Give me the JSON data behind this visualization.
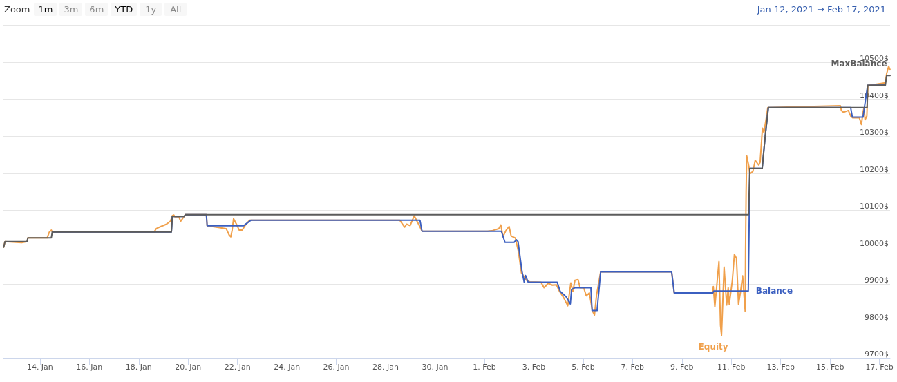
{
  "chart_data": {
    "type": "line",
    "annotations": [
      "Zoom",
      "1m",
      "3m",
      "6m",
      "YTD",
      "1y",
      "All",
      "Jan 12, 2021 → Feb 17, 2021"
    ],
    "xlim": [
      "2021-01-12T12:30",
      "2021-02-17T10:20"
    ],
    "xticks": [
      {
        "value": "2021-01-14",
        "label": "14. Jan"
      },
      {
        "value": "2021-01-16",
        "label": "16. Jan"
      },
      {
        "value": "2021-01-18",
        "label": "18. Jan"
      },
      {
        "value": "2021-01-20",
        "label": "20. Jan"
      },
      {
        "value": "2021-01-22",
        "label": "22. Jan"
      },
      {
        "value": "2021-01-24",
        "label": "24. Jan"
      },
      {
        "value": "2021-01-26",
        "label": "26. Jan"
      },
      {
        "value": "2021-01-28",
        "label": "28. Jan"
      },
      {
        "value": "2021-01-30",
        "label": "30. Jan"
      },
      {
        "value": "2021-02-01",
        "label": "1. Feb"
      },
      {
        "value": "2021-02-03",
        "label": "3. Feb"
      },
      {
        "value": "2021-02-05",
        "label": "5. Feb"
      },
      {
        "value": "2021-02-07",
        "label": "7. Feb"
      },
      {
        "value": "2021-02-09",
        "label": "9. Feb"
      },
      {
        "value": "2021-02-11",
        "label": "11. Feb"
      },
      {
        "value": "2021-02-13",
        "label": "13. Feb"
      },
      {
        "value": "2021-02-15",
        "label": "15. Feb"
      },
      {
        "value": "2021-02-17",
        "label": "17. Feb"
      }
    ],
    "ylim": [
      9700,
      10600
    ],
    "yticks": [
      {
        "value": 9700,
        "label": "9700$"
      },
      {
        "value": 9800,
        "label": "9800$"
      },
      {
        "value": 9900,
        "label": "9900$"
      },
      {
        "value": 10000,
        "label": "10000$"
      },
      {
        "value": 10100,
        "label": "10100$"
      },
      {
        "value": 10200,
        "label": "10200$"
      },
      {
        "value": 10300,
        "label": "10300$"
      },
      {
        "value": 10400,
        "label": "10400$"
      },
      {
        "value": 10500,
        "label": "10500$"
      }
    ],
    "grid": "y",
    "legend": false,
    "marker": "none",
    "line_style": "solid",
    "series": [
      {
        "name": "Equity",
        "color": "#f0a04b",
        "x": [
          "2021-01-12T12:45",
          "2021-01-12T14:00",
          "2021-01-13T06:15",
          "2021-01-13T11:30",
          "2021-01-13T12:15",
          "2021-01-14T07:00",
          "2021-01-14T09:00",
          "2021-01-14T11:00",
          "2021-01-14T12:00",
          "2021-01-18T15:00",
          "2021-01-18T17:00",
          "2021-01-18T21:40",
          "2021-01-19T03:00",
          "2021-01-19T06:45",
          "2021-01-19T08:40",
          "2021-01-19T10:00",
          "2021-01-19T11:15",
          "2021-01-19T15:00",
          "2021-01-19T16:50",
          "2021-01-19T21:20",
          "2021-01-20T17:45",
          "2021-01-20T18:30",
          "2021-01-21T13:00",
          "2021-01-21T15:50",
          "2021-01-21T17:30",
          "2021-01-21T18:45",
          "2021-01-21T20:10",
          "2021-01-21T23:00",
          "2021-01-22T01:40",
          "2021-01-22T04:30",
          "2021-01-22T07:20",
          "2021-01-22T11:45",
          "2021-01-28T13:40",
          "2021-01-28T18:30",
          "2021-01-28T20:24",
          "2021-01-28T23:45",
          "2021-01-29T03:50",
          "2021-01-29T06:30",
          "2021-01-29T09:20",
          "2021-01-29T11:20",
          "2021-02-01T03:00",
          "2021-02-01T08:00",
          "2021-02-01T14:00",
          "2021-02-01T16:00",
          "2021-02-01T18:00",
          "2021-02-01T21:00",
          "2021-02-02T00:00",
          "2021-02-02T02:00",
          "2021-02-02T06:00",
          "2021-02-02T09:00",
          "2021-02-02T12:00",
          "2021-02-02T15:00",
          "2021-02-02T17:00",
          "2021-02-02T20:00",
          "2021-02-03T07:00",
          "2021-02-03T10:00",
          "2021-02-03T14:00",
          "2021-02-03T18:00",
          "2021-02-03T22:00",
          "2021-02-04T01:00",
          "2021-02-04T05:00",
          "2021-02-04T09:00",
          "2021-02-04T12:00",
          "2021-02-04T14:00",
          "2021-02-04T16:00",
          "2021-02-04T19:00",
          "2021-02-04T21:00",
          "2021-02-05T00:30",
          "2021-02-05T03:00",
          "2021-02-05T06:00",
          "2021-02-05T09:00",
          "2021-02-05T11:00",
          "2021-02-05T13:00",
          "2021-02-05T17:00",
          "2021-02-08T14:00",
          "2021-02-08T16:30",
          "2021-02-10T06:00",
          "2021-02-10T06:30",
          "2021-02-10T08:00",
          "2021-02-10T12:00",
          "2021-02-10T13:30",
          "2021-02-10T14:30",
          "2021-02-10T17:00",
          "2021-02-10T19:30",
          "2021-02-10T21:00",
          "2021-02-10T22:00",
          "2021-02-11T01:00",
          "2021-02-11T03:00",
          "2021-02-11T05:00",
          "2021-02-11T07:00",
          "2021-02-11T09:00",
          "2021-02-11T11:00",
          "2021-02-11T13:30",
          "2021-02-11T13:50",
          "2021-02-11T14:24",
          "2021-02-11T15:00",
          "2021-02-11T17:00",
          "2021-02-11T18:00",
          "2021-02-11T21:00",
          "2021-02-11T23:15",
          "2021-02-12T02:40",
          "2021-02-12T04:00",
          "2021-02-12T06:15",
          "2021-02-12T07:40",
          "2021-02-12T10:00",
          "2021-02-12T11:30",
          "2021-02-15T10:00",
          "2021-02-15T11:00",
          "2021-02-15T13:00",
          "2021-02-15T17:45",
          "2021-02-15T20:00",
          "2021-02-15T22:00",
          "2021-02-16T04:30",
          "2021-02-16T06:30",
          "2021-02-16T08:00",
          "2021-02-16T09:00",
          "2021-02-16T10:00",
          "2021-02-16T11:45",
          "2021-02-16T12:45",
          "2021-02-17T05:45",
          "2021-02-17T07:00",
          "2021-02-17T09:00",
          "2021-02-17T10:20"
        ],
        "values": [
          10000,
          10015,
          10012,
          10015,
          10025,
          10025,
          10040,
          10046,
          10041,
          10041,
          10050,
          10056,
          10062,
          10070,
          10085,
          10087,
          10082,
          10082,
          10070,
          10088,
          10088,
          10058,
          10050,
          10033,
          10028,
          10045,
          10077,
          10062,
          10046,
          10046,
          10058,
          10073,
          10073,
          10054,
          10062,
          10058,
          10085,
          10070,
          10055,
          10043,
          10043,
          10045,
          10050,
          10060,
          10028,
          10045,
          10056,
          10030,
          10025,
          9989,
          9930,
          9918,
          9910,
          9906,
          9905,
          9890,
          9902,
          9897,
          9898,
          9880,
          9863,
          9841,
          9903,
          9880,
          9910,
          9912,
          9890,
          9890,
          9868,
          9876,
          9827,
          9816,
          9870,
          9933,
          9933,
          9876,
          9876,
          9893,
          9838,
          9961,
          9788,
          9761,
          9946,
          9843,
          9890,
          9845,
          9910,
          9980,
          9970,
          9845,
          9880,
          9922,
          9826,
          9990,
          10150,
          10247,
          10220,
          10198,
          10205,
          10235,
          10222,
          10230,
          10322,
          10310,
          10350,
          10378,
          10383,
          10370,
          10365,
          10370,
          10355,
          10350,
          10350,
          10332,
          10365,
          10378,
          10345,
          10355,
          10438,
          10445,
          10470,
          10490,
          10480
        ]
      },
      {
        "name": "Balance",
        "color": "#3b5fc0",
        "x": [
          "2021-01-14T12:00",
          "2021-01-19T07:45",
          "2021-01-19T08:40",
          "2021-01-19T20:24",
          "2021-01-19T21:20",
          "2021-01-20T17:45",
          "2021-01-20T18:30",
          "2021-01-22T06:00",
          "2021-01-22T13:10",
          "2021-01-29T09:20",
          "2021-01-29T11:20",
          "2021-02-01T16:30",
          "2021-02-01T20:00",
          "2021-02-02T05:00",
          "2021-02-02T07:00",
          "2021-02-02T08:40",
          "2021-02-02T12:30",
          "2021-02-02T14:40",
          "2021-02-02T16:00",
          "2021-02-02T18:30",
          "2021-02-03T22:45",
          "2021-02-04T01:40",
          "2021-02-04T07:30",
          "2021-02-04T11:30",
          "2021-02-04T12:45",
          "2021-02-04T16:00",
          "2021-02-05T07:30",
          "2021-02-05T08:40",
          "2021-02-05T13:30",
          "2021-02-05T17:00",
          "2021-02-08T14:00",
          "2021-02-08T16:30",
          "2021-02-10T06:00",
          "2021-02-10T07:00",
          "2021-02-11T16:30",
          "2021-02-11T18:00",
          "2021-02-12T06:00",
          "2021-02-12T08:40",
          "2021-02-12T12:00",
          "2021-02-15T20:00",
          "2021-02-15T21:40",
          "2021-02-16T08:00",
          "2021-02-16T12:30",
          "2021-02-17T05:45"
        ],
        "values": [
          10041,
          10041,
          10083,
          10083,
          10088,
          10088,
          10058,
          10058,
          10073,
          10073,
          10043,
          10043,
          10013,
          10013,
          10020,
          10015,
          9935,
          9905,
          9923,
          9905,
          9905,
          9880,
          9865,
          9846,
          9885,
          9890,
          9890,
          9828,
          9828,
          9933,
          9933,
          9876,
          9876,
          9881,
          9881,
          10213,
          10213,
          10293,
          10378,
          10378,
          10352,
          10352,
          10438,
          10439
        ]
      },
      {
        "name": "MaxBalance",
        "color": "#5c5c5c",
        "x": [
          "2021-01-12T12:45",
          "2021-01-12T14:00",
          "2021-01-13T11:30",
          "2021-01-13T12:15",
          "2021-01-14T11:00",
          "2021-01-14T12:00",
          "2021-01-19T07:45",
          "2021-01-19T08:40",
          "2021-01-19T20:24",
          "2021-01-19T21:20",
          "2021-02-11T16:45",
          "2021-02-11T18:00",
          "2021-02-12T06:00",
          "2021-02-12T08:40",
          "2021-02-12T12:00",
          "2021-02-16T12:00",
          "2021-02-16T12:30",
          "2021-02-17T05:45",
          "2021-02-17T07:00",
          "2021-02-17T10:20"
        ],
        "values": [
          10000,
          10015,
          10015,
          10025,
          10025,
          10041,
          10041,
          10083,
          10083,
          10088,
          10088,
          10213,
          10213,
          10293,
          10378,
          10378,
          10438,
          10439,
          10465,
          10465
        ]
      }
    ]
  }
}
